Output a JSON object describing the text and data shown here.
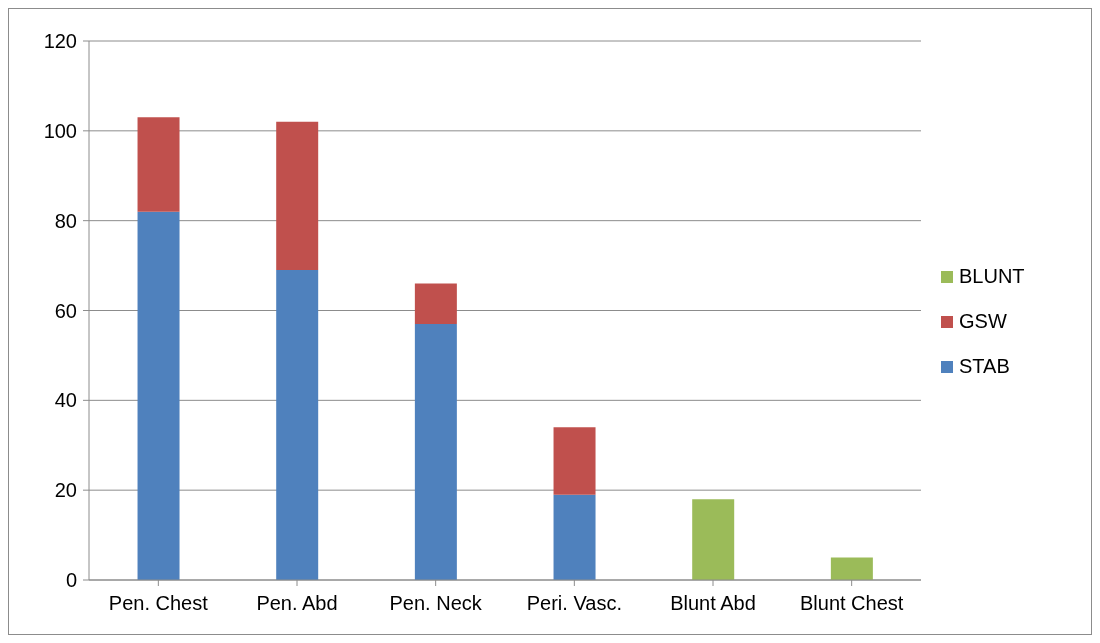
{
  "chart_data": {
    "type": "bar",
    "stacked": true,
    "categories": [
      "Pen. Chest",
      "Pen. Abd",
      "Pen. Neck",
      "Peri. Vasc.",
      "Blunt Abd",
      "Blunt Chest"
    ],
    "series": [
      {
        "name": "STAB",
        "color": "#4f81bd",
        "values": [
          82,
          69,
          57,
          19,
          null,
          null
        ]
      },
      {
        "name": "GSW",
        "color": "#c0504d",
        "values": [
          21,
          33,
          9,
          15,
          null,
          null
        ]
      },
      {
        "name": "BLUNT",
        "color": "#9bbb59",
        "values": [
          null,
          null,
          null,
          null,
          18,
          5
        ]
      }
    ],
    "ylim": [
      0,
      120
    ],
    "yticks": [
      0,
      20,
      40,
      60,
      80,
      100,
      120
    ],
    "grid": "y",
    "legend": "right"
  }
}
